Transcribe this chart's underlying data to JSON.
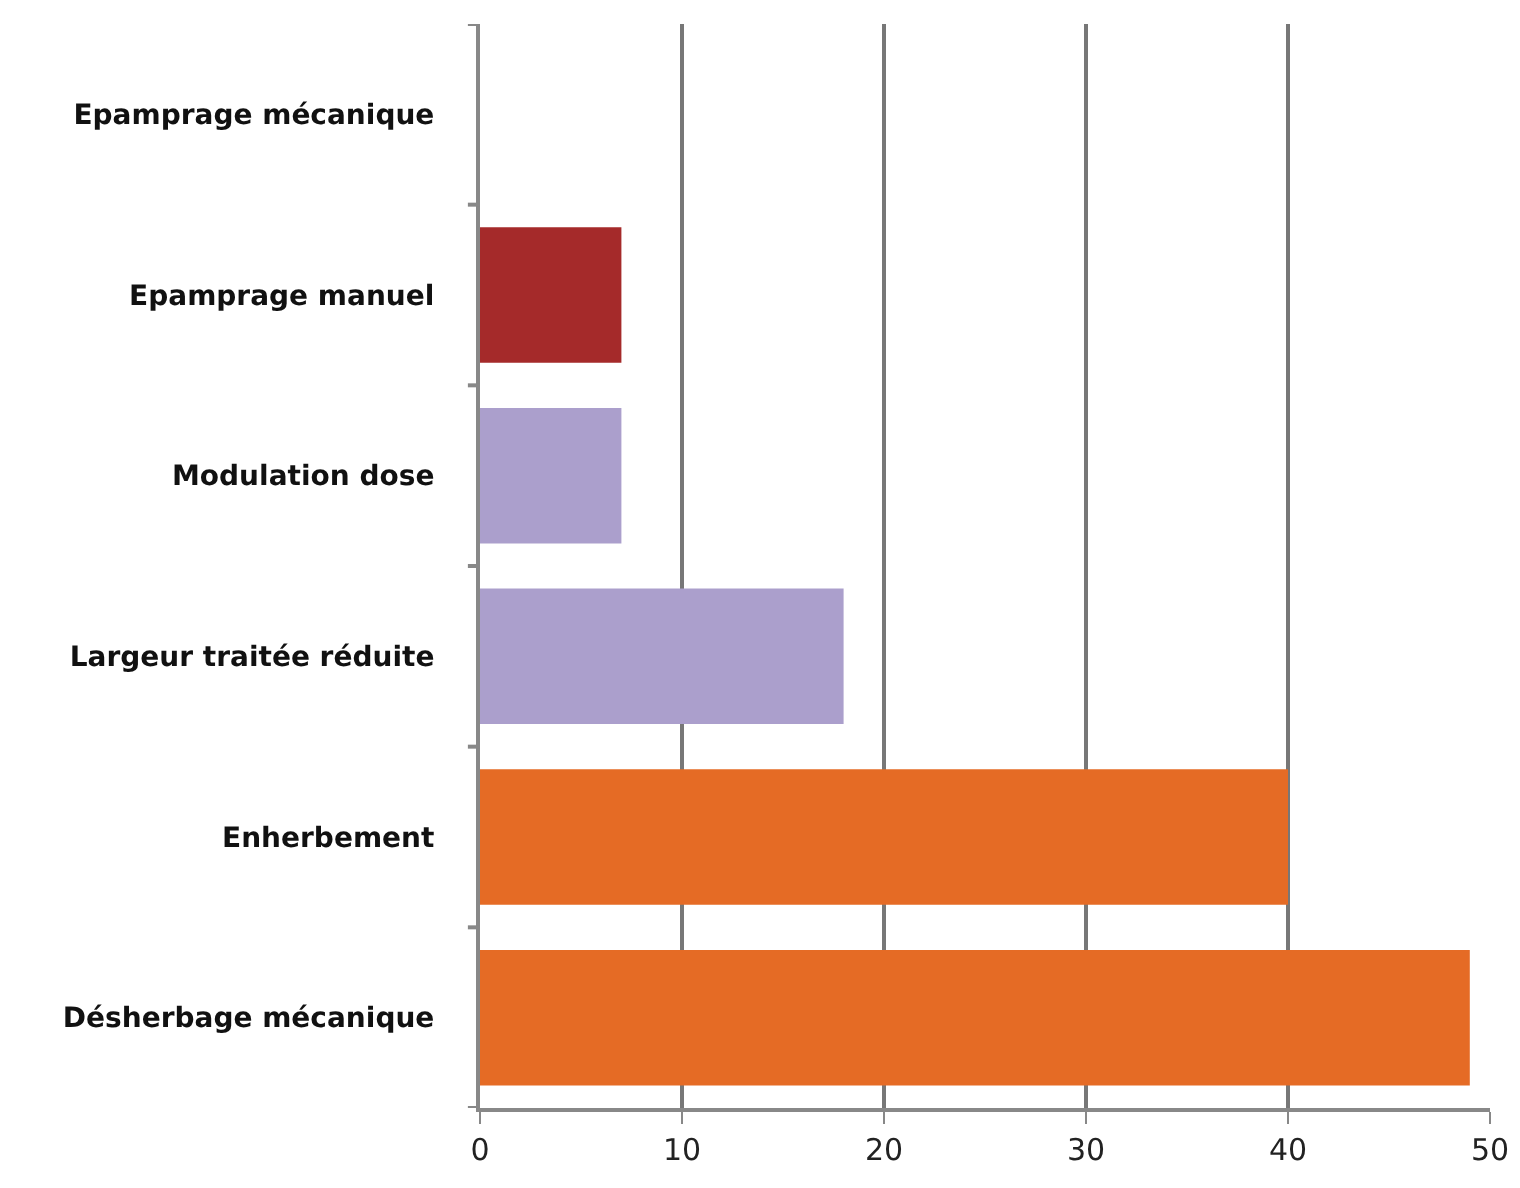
{
  "chart_data": {
    "type": "bar",
    "orientation": "horizontal",
    "categories": [
      "Epamprage mécanique",
      "Epamprage manuel",
      "Modulation dose",
      "Largeur traitée réduite",
      "Enherbement",
      "Désherbage mécanique"
    ],
    "values": [
      0,
      7,
      7,
      18,
      40,
      49
    ],
    "colors": [
      "#a52a2a",
      "#a52a2a",
      "#ab9fcc",
      "#ab9fcc",
      "#e56b25",
      "#e56b25"
    ],
    "xlim": [
      0,
      50
    ],
    "xticks": [
      0,
      10,
      20,
      30,
      40,
      50
    ],
    "grid": "x"
  }
}
